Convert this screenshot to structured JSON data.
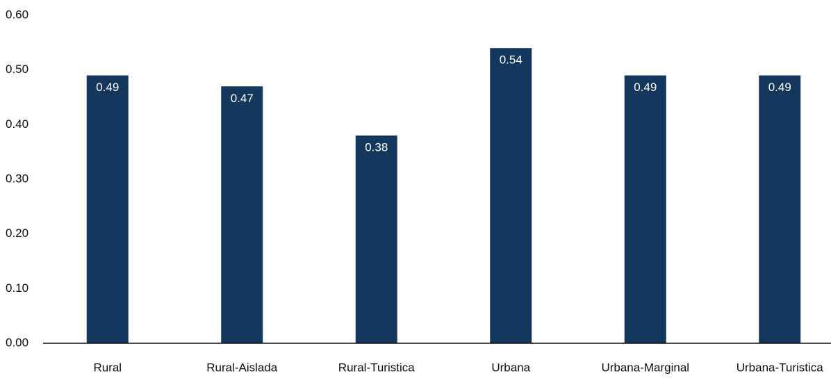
{
  "chart_data": {
    "type": "bar",
    "categories": [
      "Rural",
      "Rural-Aislada",
      "Rural-Turistica",
      "Urbana",
      "Urbana-Marginal",
      "Urbana-Turistica"
    ],
    "values": [
      0.49,
      0.47,
      0.38,
      0.54,
      0.49,
      0.49
    ],
    "color": "#14375e",
    "ylim": [
      0,
      0.6
    ],
    "yticks": [
      {
        "value": 0,
        "label": "0.00"
      },
      {
        "value": 0.1,
        "label": "0.10"
      },
      {
        "value": 0.2,
        "label": "0.20"
      },
      {
        "value": 0.3,
        "label": "0.30"
      },
      {
        "value": 0.4,
        "label": "0.40"
      },
      {
        "value": 0.5,
        "label": "0.50"
      },
      {
        "value": 0.6,
        "label": "0.60"
      }
    ],
    "grid": false
  }
}
